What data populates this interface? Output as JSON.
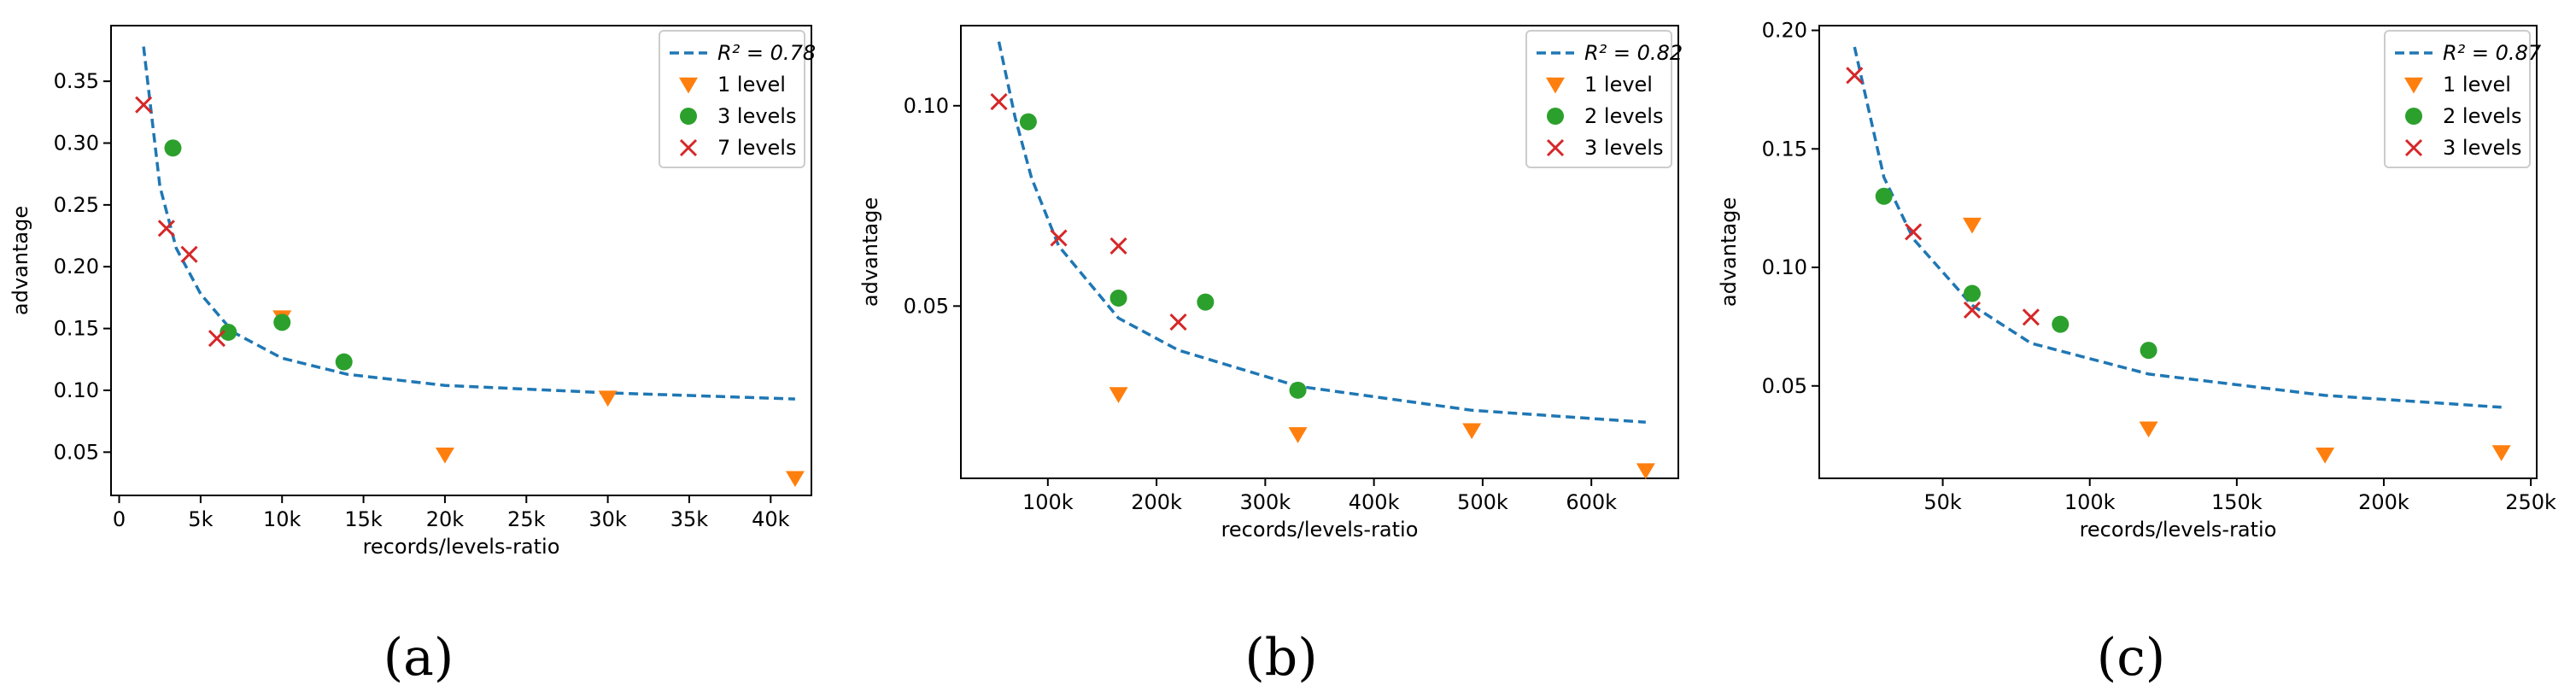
{
  "chart_data": [
    {
      "type": "scatter",
      "panel_label": "(a)",
      "xlabel": "records/levels-ratio",
      "ylabel": "advantage",
      "xlim": [
        -500,
        42500
      ],
      "ylim": [
        0.015,
        0.395
      ],
      "xticks": [
        {
          "v": 0,
          "label": "0"
        },
        {
          "v": 5000,
          "label": "5k"
        },
        {
          "v": 10000,
          "label": "10k"
        },
        {
          "v": 15000,
          "label": "15k"
        },
        {
          "v": 20000,
          "label": "20k"
        },
        {
          "v": 25000,
          "label": "25k"
        },
        {
          "v": 30000,
          "label": "30k"
        },
        {
          "v": 35000,
          "label": "35k"
        },
        {
          "v": 40000,
          "label": "40k"
        }
      ],
      "yticks": [
        {
          "v": 0.05,
          "label": "0.05"
        },
        {
          "v": 0.1,
          "label": "0.10"
        },
        {
          "v": 0.15,
          "label": "0.15"
        },
        {
          "v": 0.2,
          "label": "0.20"
        },
        {
          "v": 0.25,
          "label": "0.25"
        },
        {
          "v": 0.3,
          "label": "0.30"
        },
        {
          "v": 0.35,
          "label": "0.35"
        }
      ],
      "legend_placement": "top-right",
      "fit": {
        "label": "R² = 0.78",
        "x": [
          1500,
          2500,
          3500,
          5000,
          7000,
          10000,
          14000,
          20000,
          30000,
          41500
        ],
        "y": [
          0.378,
          0.265,
          0.215,
          0.178,
          0.147,
          0.126,
          0.113,
          0.104,
          0.098,
          0.093
        ]
      },
      "series": [
        {
          "name": "1 level",
          "marker": "triangle",
          "x": [
            10000,
            20000,
            30000,
            41500
          ],
          "y": [
            0.159,
            0.048,
            0.094,
            0.029
          ]
        },
        {
          "name": "3 levels",
          "marker": "circle",
          "x": [
            3300,
            6700,
            10000,
            13800
          ],
          "y": [
            0.296,
            0.147,
            0.155,
            0.123
          ]
        },
        {
          "name": "7 levels",
          "marker": "cross",
          "x": [
            1500,
            2900,
            4300,
            6000
          ],
          "y": [
            0.331,
            0.231,
            0.21,
            0.142
          ]
        }
      ]
    },
    {
      "type": "scatter",
      "panel_label": "(b)",
      "xlabel": "records/levels-ratio",
      "ylabel": "advantage",
      "xlim": [
        20000,
        680000
      ],
      "ylim": [
        0.007,
        0.12
      ],
      "xticks": [
        {
          "v": 100000,
          "label": "100k"
        },
        {
          "v": 200000,
          "label": "200k"
        },
        {
          "v": 300000,
          "label": "300k"
        },
        {
          "v": 400000,
          "label": "400k"
        },
        {
          "v": 500000,
          "label": "500k"
        },
        {
          "v": 600000,
          "label": "600k"
        }
      ],
      "yticks": [
        {
          "v": 0.05,
          "label": "0.05"
        },
        {
          "v": 0.1,
          "label": "0.10"
        }
      ],
      "legend_placement": "top-right",
      "fit": {
        "label": "R² = 0.82",
        "x": [
          55000,
          70000,
          85000,
          110000,
          165000,
          220000,
          330000,
          490000,
          650000
        ],
        "y": [
          0.116,
          0.097,
          0.082,
          0.065,
          0.047,
          0.039,
          0.03,
          0.024,
          0.021
        ]
      },
      "series": [
        {
          "name": "1 level",
          "marker": "triangle",
          "x": [
            165000,
            330000,
            490000,
            650000
          ],
          "y": [
            0.028,
            0.018,
            0.019,
            0.009
          ]
        },
        {
          "name": "2 levels",
          "marker": "circle",
          "x": [
            82000,
            165000,
            245000,
            330000
          ],
          "y": [
            0.096,
            0.052,
            0.051,
            0.029
          ]
        },
        {
          "name": "3 levels",
          "marker": "cross",
          "x": [
            55000,
            110000,
            165000,
            220000
          ],
          "y": [
            0.101,
            0.067,
            0.065,
            0.046
          ]
        }
      ]
    },
    {
      "type": "scatter",
      "panel_label": "(c)",
      "xlabel": "records/levels-ratio",
      "ylabel": "advantage",
      "xlim": [
        8000,
        252000
      ],
      "ylim": [
        0.011,
        0.202
      ],
      "xticks": [
        {
          "v": 50000,
          "label": "50k"
        },
        {
          "v": 100000,
          "label": "100k"
        },
        {
          "v": 150000,
          "label": "150k"
        },
        {
          "v": 200000,
          "label": "200k"
        },
        {
          "v": 250000,
          "label": "250k"
        }
      ],
      "yticks": [
        {
          "v": 0.05,
          "label": "0.05"
        },
        {
          "v": 0.1,
          "label": "0.10"
        },
        {
          "v": 0.15,
          "label": "0.15"
        },
        {
          "v": 0.2,
          "label": "0.20"
        }
      ],
      "legend_placement": "top-right",
      "fit": {
        "label": "R² = 0.87",
        "x": [
          20000,
          30000,
          40000,
          60000,
          80000,
          120000,
          180000,
          240000
        ],
        "y": [
          0.193,
          0.138,
          0.112,
          0.084,
          0.068,
          0.055,
          0.046,
          0.041
        ]
      },
      "series": [
        {
          "name": "1 level",
          "marker": "triangle",
          "x": [
            60000,
            120000,
            180000,
            240000
          ],
          "y": [
            0.118,
            0.032,
            0.021,
            0.022
          ]
        },
        {
          "name": "2 levels",
          "marker": "circle",
          "x": [
            30000,
            60000,
            90000,
            120000
          ],
          "y": [
            0.13,
            0.089,
            0.076,
            0.065
          ]
        },
        {
          "name": "3 levels",
          "marker": "cross",
          "x": [
            20000,
            40000,
            60000,
            80000
          ],
          "y": [
            0.181,
            0.115,
            0.082,
            0.079
          ]
        }
      ]
    }
  ],
  "colors": {
    "fit_line": "#1f77b4",
    "triangle": "#ff7f0e",
    "circle": "#2ca02c",
    "cross": "#d62728"
  }
}
